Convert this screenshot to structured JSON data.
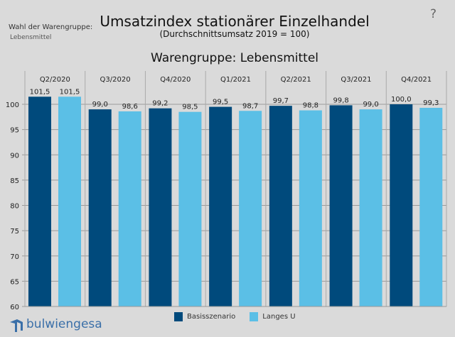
{
  "selector": {
    "label": "Wahl der Warengruppe:",
    "value": "Lebensmittel"
  },
  "header": {
    "title": "Umsatzindex stationärer Einzelhandel",
    "subtitle": "(Durchschnittsumsatz 2019 = 100)",
    "help": "?"
  },
  "brand": "bulwiengesa",
  "chart_data": {
    "type": "bar",
    "title": "Warengruppe: Lebensmittel",
    "categories": [
      "Q2/2020",
      "Q3/2020",
      "Q4/2020",
      "Q1/2021",
      "Q2/2021",
      "Q3/2021",
      "Q4/2021"
    ],
    "series": [
      {
        "name": "Basisszenario",
        "color": "#004a7c",
        "values": [
          101.5,
          99.0,
          99.2,
          99.5,
          99.7,
          99.8,
          100.0
        ],
        "labels": [
          "101,5",
          "99,0",
          "99,2",
          "99,5",
          "99,7",
          "99,8",
          "100,0"
        ]
      },
      {
        "name": "Langes U",
        "color": "#5bbfe6",
        "values": [
          101.5,
          98.6,
          98.5,
          98.7,
          98.8,
          99.0,
          99.3
        ],
        "labels": [
          "101,5",
          "98,6",
          "98,5",
          "98,7",
          "98,8",
          "99,0",
          "99,3"
        ]
      }
    ],
    "yticks": [
      60,
      65,
      70,
      75,
      80,
      85,
      90,
      95,
      100
    ],
    "ylim": [
      60,
      103.3
    ],
    "grid": true,
    "legend": "bottom"
  }
}
